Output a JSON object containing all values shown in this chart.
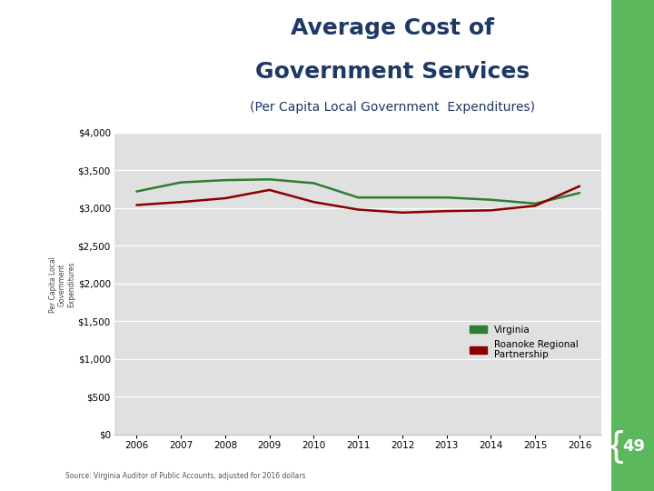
{
  "title_line1": "Average Cost of",
  "title_line2": "Government Services",
  "subtitle": "(Per Capita Local Government  Expenditures)",
  "title_color": "#1f3864",
  "subtitle_color": "#1f3864",
  "years": [
    2006,
    2007,
    2008,
    2009,
    2010,
    2011,
    2012,
    2013,
    2014,
    2015,
    2016
  ],
  "virginia": [
    3220,
    3340,
    3370,
    3380,
    3330,
    3140,
    3140,
    3140,
    3110,
    3060,
    3200
  ],
  "roanoke": [
    3040,
    3080,
    3130,
    3240,
    3080,
    2980,
    2940,
    2960,
    2970,
    3030,
    3290
  ],
  "virginia_color": "#2e7d32",
  "roanoke_color": "#8b0000",
  "ylim": [
    0,
    4000
  ],
  "yticks": [
    0,
    500,
    1000,
    1500,
    2000,
    2500,
    3000,
    3500,
    4000
  ],
  "background_color": "#e0e0e0",
  "outer_background": "#ffffff",
  "green_bar_color": "#5cb85c",
  "footer_text": "Source: Virginia Auditor of Public Accounts, adjusted for 2016 dollars",
  "page_number": "49",
  "legend_virginia": "Virginia",
  "legend_roanoke": "Roanoke Regional\nPartnership"
}
